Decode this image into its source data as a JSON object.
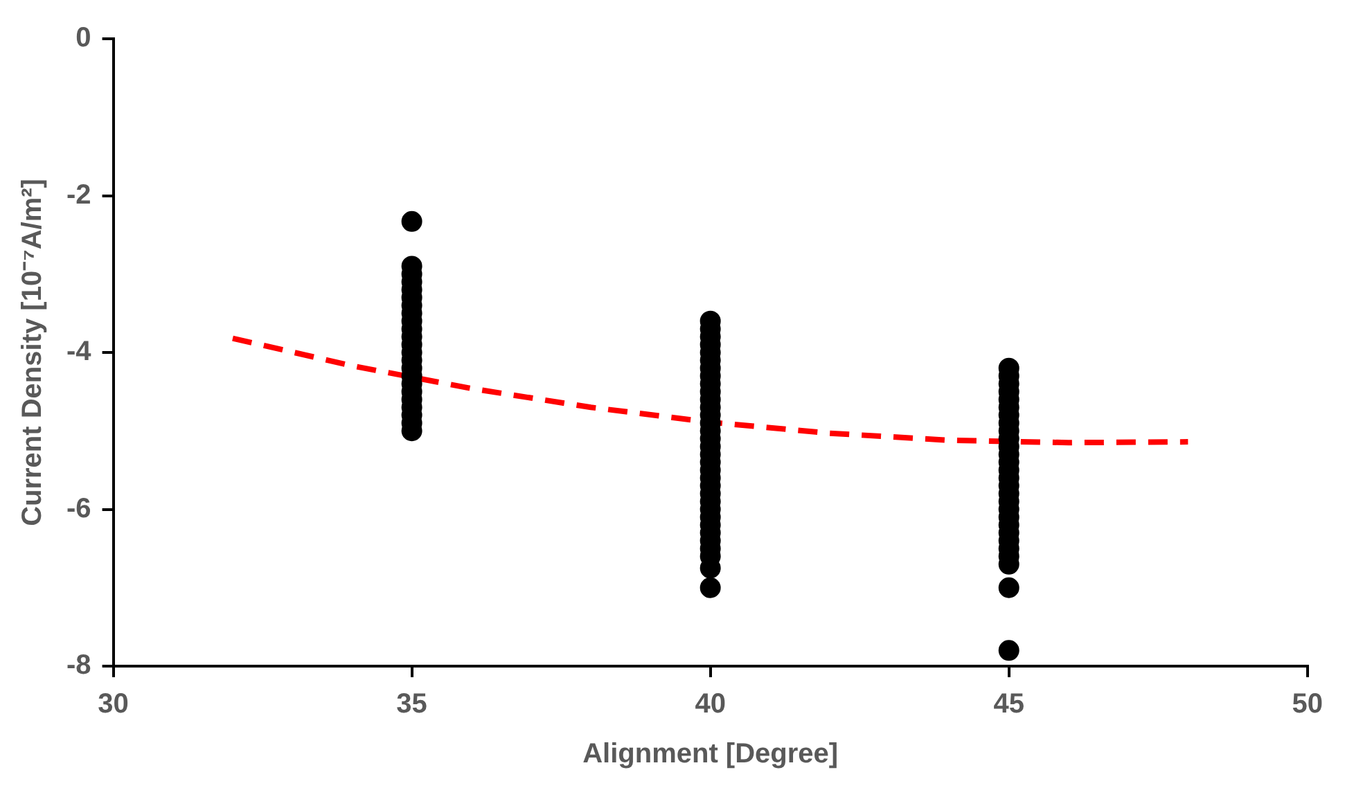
{
  "chart_data": {
    "type": "scatter",
    "xlabel": "Alignment [Degree]",
    "ylabel": "Current Density [10⁻⁷A/m²]",
    "xlim": [
      30,
      50
    ],
    "xticks": [
      30,
      35,
      40,
      45,
      50
    ],
    "ylim": [
      -8,
      0
    ],
    "yticks": [
      -8,
      -6,
      -4,
      -2,
      0
    ],
    "marker": "circle",
    "legend": false,
    "series": [
      {
        "color": "#000000",
        "x": [
          35,
          35,
          35,
          35,
          35,
          35,
          35,
          35,
          35,
          35,
          35,
          35,
          35,
          35,
          35,
          35,
          35,
          35,
          35,
          35,
          35,
          35,
          35,
          40,
          40,
          40,
          40,
          40,
          40,
          40,
          40,
          40,
          40,
          40,
          40,
          40,
          40,
          40,
          40,
          40,
          40,
          40,
          40,
          40,
          40,
          40,
          40,
          40,
          40,
          40,
          40,
          40,
          40,
          40,
          40,
          40,
          45,
          45,
          45,
          45,
          45,
          45,
          45,
          45,
          45,
          45,
          45,
          45,
          45,
          45,
          45,
          45,
          45,
          45,
          45,
          45,
          45,
          45,
          45,
          45,
          45,
          45,
          45,
          45
        ],
        "values": [
          -2.33,
          -2.9,
          -3.0,
          -3.1,
          -3.2,
          -3.3,
          -3.4,
          -3.5,
          -3.6,
          -3.7,
          -3.8,
          -3.9,
          -4.0,
          -4.1,
          -4.2,
          -4.3,
          -4.4,
          -4.5,
          -4.6,
          -4.7,
          -4.8,
          -4.9,
          -5.0,
          -3.6,
          -3.7,
          -3.8,
          -3.9,
          -4.0,
          -4.1,
          -4.2,
          -4.3,
          -4.4,
          -4.5,
          -4.6,
          -4.7,
          -4.8,
          -4.9,
          -5.0,
          -5.1,
          -5.2,
          -5.3,
          -5.4,
          -5.5,
          -5.6,
          -5.7,
          -5.8,
          -5.9,
          -6.0,
          -6.1,
          -6.2,
          -6.3,
          -6.4,
          -6.5,
          -6.6,
          -6.75,
          -7.0,
          -4.2,
          -4.3,
          -4.4,
          -4.5,
          -4.6,
          -4.7,
          -4.8,
          -4.9,
          -5.0,
          -5.1,
          -5.2,
          -5.3,
          -5.4,
          -5.5,
          -5.6,
          -5.7,
          -5.8,
          -5.9,
          -6.0,
          -6.1,
          -6.2,
          -6.3,
          -6.4,
          -6.5,
          -6.6,
          -6.7,
          -7.0,
          -7.8
        ]
      },
      {
        "type": "line",
        "color": "#ff0000",
        "line_style": "dashed",
        "marker": "none",
        "x": [
          32,
          34,
          36,
          38,
          40,
          42,
          44,
          46,
          48
        ],
        "values": [
          -3.82,
          -4.17,
          -4.46,
          -4.7,
          -4.89,
          -5.03,
          -5.12,
          -5.15,
          -5.14
        ]
      }
    ]
  }
}
